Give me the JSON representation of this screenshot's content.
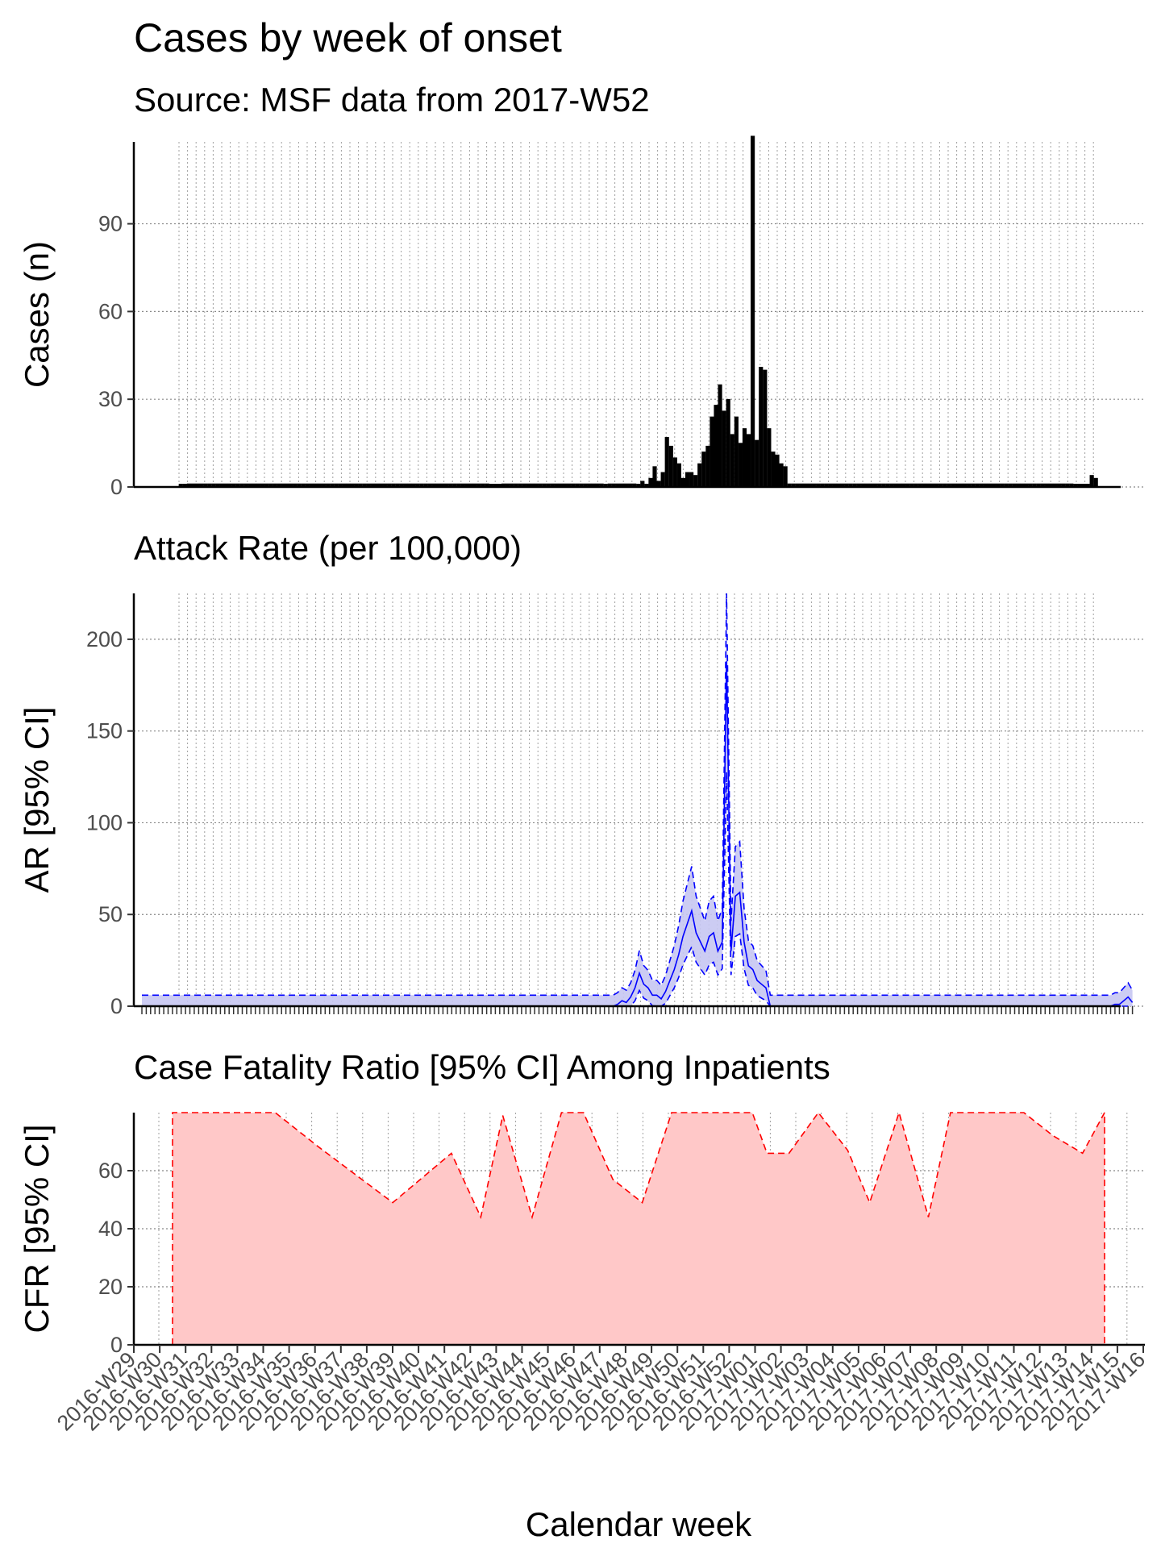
{
  "titles": {
    "main": "Cases by week of onset",
    "subtitle": "Source: MSF data from 2017-W52",
    "attack_rate": "Attack Rate (per 100,000)",
    "cfr": "Case Fatality Ratio [95% CI] Among Inpatients"
  },
  "colors": {
    "bars": "#000000",
    "bar_outline": "#000000",
    "ar_line": "#0000ff",
    "ar_fill": "#c7c7f2",
    "cfr_line": "#ff0000",
    "cfr_fill": "#ffc8c8",
    "grid": "#888888"
  },
  "chart_data": [
    {
      "type": "bar",
      "id": "cases",
      "ylabel": "Cases (n)",
      "ylim": [
        0,
        118
      ],
      "yticks": [
        0,
        30,
        60,
        90
      ],
      "grid": "dotted",
      "start_week": "2016-W29",
      "end_week": "2017-W16",
      "values_per_half_week_note": "",
      "values": [
        1,
        1,
        0,
        0,
        0,
        0,
        0,
        0,
        0,
        0,
        0,
        0,
        0,
        0,
        0,
        0,
        0,
        0,
        0,
        0,
        0,
        0,
        0,
        0,
        0,
        0,
        0,
        0,
        0,
        0,
        0,
        0,
        0,
        0,
        0,
        0,
        0,
        0,
        0,
        0,
        0,
        0,
        0,
        0,
        0,
        0,
        0,
        0,
        0,
        0,
        0,
        0,
        0,
        0,
        0,
        0,
        0,
        0,
        0,
        0,
        0,
        0,
        0,
        0,
        0,
        0,
        0,
        0,
        0,
        0,
        0,
        0,
        0,
        0,
        0,
        0,
        1,
        1,
        1,
        0,
        0,
        0,
        0,
        0,
        0,
        0,
        0,
        0,
        0,
        0,
        0,
        0,
        0,
        0,
        0,
        0,
        0,
        0,
        0,
        0,
        0,
        0,
        0,
        0,
        1,
        0,
        0,
        0,
        0,
        0,
        0,
        0,
        1,
        2,
        1,
        3,
        7,
        2,
        5,
        17,
        14,
        10,
        8,
        3,
        5,
        5,
        4,
        8,
        12,
        14,
        24,
        28,
        35,
        26,
        30,
        18,
        24,
        15,
        20,
        18,
        120,
        16,
        41,
        40,
        20,
        12,
        11,
        8,
        7,
        0,
        0,
        0,
        0,
        0,
        0,
        0,
        0,
        0,
        0,
        0,
        0,
        0,
        0,
        0,
        0,
        0,
        0,
        0,
        0,
        0,
        0,
        0,
        0,
        0,
        0,
        0,
        0,
        0,
        0,
        0,
        0,
        0,
        0,
        0,
        0,
        0,
        0,
        0,
        0,
        0,
        0,
        0,
        0,
        0,
        0,
        0,
        0,
        0,
        0,
        0,
        0,
        0,
        0,
        0,
        0,
        0,
        0,
        0,
        0,
        0,
        0,
        0,
        0,
        0,
        0,
        0,
        0,
        0,
        0,
        1,
        1,
        1,
        1,
        4,
        3
      ]
    },
    {
      "type": "area",
      "id": "attack_rate",
      "ylabel": "AR [95% CI]",
      "ylim": [
        0,
        225
      ],
      "yticks": [
        0,
        50,
        100,
        150,
        200
      ],
      "grid": "dotted",
      "series": [
        {
          "name": "",
          "values": [
            0,
            0,
            0,
            0,
            0,
            0,
            0,
            0,
            0,
            0,
            0,
            0,
            0,
            0,
            0,
            0,
            0,
            0,
            0,
            0,
            0,
            0,
            0,
            0,
            0,
            0,
            0,
            0,
            0,
            0,
            0,
            0,
            0,
            0,
            0,
            0,
            0,
            0,
            0,
            0,
            0,
            0,
            0,
            0,
            0,
            0,
            0,
            0,
            0,
            0,
            0,
            0,
            0,
            0,
            0,
            0,
            0,
            0,
            0,
            0,
            0,
            0,
            0,
            0,
            0,
            0,
            0,
            0,
            0,
            0,
            0,
            0,
            0,
            0,
            0,
            0,
            0,
            0,
            0,
            0,
            0,
            0,
            0,
            0,
            0,
            0,
            0,
            0,
            0,
            0,
            0,
            0,
            0,
            0,
            0,
            0,
            0,
            0,
            0,
            0,
            0,
            0,
            0,
            0,
            0,
            0,
            0,
            0,
            0,
            1,
            3,
            2,
            5,
            10,
            18,
            12,
            10,
            6,
            6,
            4,
            8,
            14,
            20,
            28,
            38,
            45,
            52,
            40,
            35,
            30,
            38,
            40,
            30,
            35,
            188,
            30,
            60,
            62,
            35,
            22,
            20,
            14,
            12,
            10,
            0,
            0,
            0,
            0,
            0,
            0,
            0,
            0,
            0,
            0,
            0,
            0,
            0,
            0,
            0,
            0,
            0,
            0,
            0,
            0,
            0,
            0,
            0,
            0,
            0,
            0,
            0,
            0,
            0,
            0,
            0,
            0,
            0,
            0,
            0,
            0,
            0,
            0,
            0,
            0,
            0,
            0,
            0,
            0,
            0,
            0,
            0,
            0,
            0,
            0,
            0,
            0,
            0,
            0,
            0,
            0,
            0,
            0,
            0,
            0,
            0,
            0,
            0,
            0,
            0,
            0,
            0,
            0,
            0,
            0,
            0,
            0,
            0,
            0,
            0,
            0,
            0,
            0,
            0,
            1,
            1,
            3,
            5,
            2
          ]
        }
      ]
    },
    {
      "type": "area",
      "id": "cfr",
      "ylabel": "CFR [95% CI]",
      "xlabel": "Calendar week",
      "ylim": [
        0,
        80
      ],
      "yticks": [
        0,
        20,
        40,
        60
      ],
      "grid": "dotted",
      "upper_ci": [
        [
          0,
          80
        ],
        [
          80,
          80
        ],
        [
          140,
          80
        ],
        [
          200,
          68
        ],
        [
          300,
          49
        ],
        [
          380,
          66
        ],
        [
          420,
          44
        ],
        [
          450,
          79
        ],
        [
          490,
          44
        ],
        [
          530,
          80
        ],
        [
          560,
          80
        ],
        [
          600,
          57
        ],
        [
          640,
          49
        ],
        [
          680,
          80
        ],
        [
          790,
          80
        ],
        [
          810,
          66
        ],
        [
          840,
          66
        ],
        [
          880,
          80
        ],
        [
          920,
          67
        ],
        [
          950,
          49
        ],
        [
          990,
          80
        ],
        [
          1030,
          44
        ],
        [
          1060,
          80
        ],
        [
          1120,
          80
        ],
        [
          1160,
          80
        ],
        [
          1200,
          72
        ],
        [
          1240,
          66
        ],
        [
          1270,
          80
        ]
      ],
      "x_labels": [
        "2016-W29",
        "2016-W30",
        "2016-W31",
        "2016-W32",
        "2016-W33",
        "2016-W34",
        "2016-W35",
        "2016-W36",
        "2016-W37",
        "2016-W38",
        "2016-W39",
        "2016-W40",
        "2016-W41",
        "2016-W42",
        "2016-W43",
        "2016-W44",
        "2016-W45",
        "2016-W46",
        "2016-W47",
        "2016-W48",
        "2016-W49",
        "2016-W50",
        "2016-W51",
        "2016-W52",
        "2017-W01",
        "2017-W02",
        "2017-W03",
        "2017-W04",
        "2017-W05",
        "2017-W06",
        "2017-W07",
        "2017-W08",
        "2017-W09",
        "2017-W10",
        "2017-W11",
        "2017-W12",
        "2017-W13",
        "2017-W14",
        "2017-W15",
        "2017-W16"
      ]
    }
  ]
}
